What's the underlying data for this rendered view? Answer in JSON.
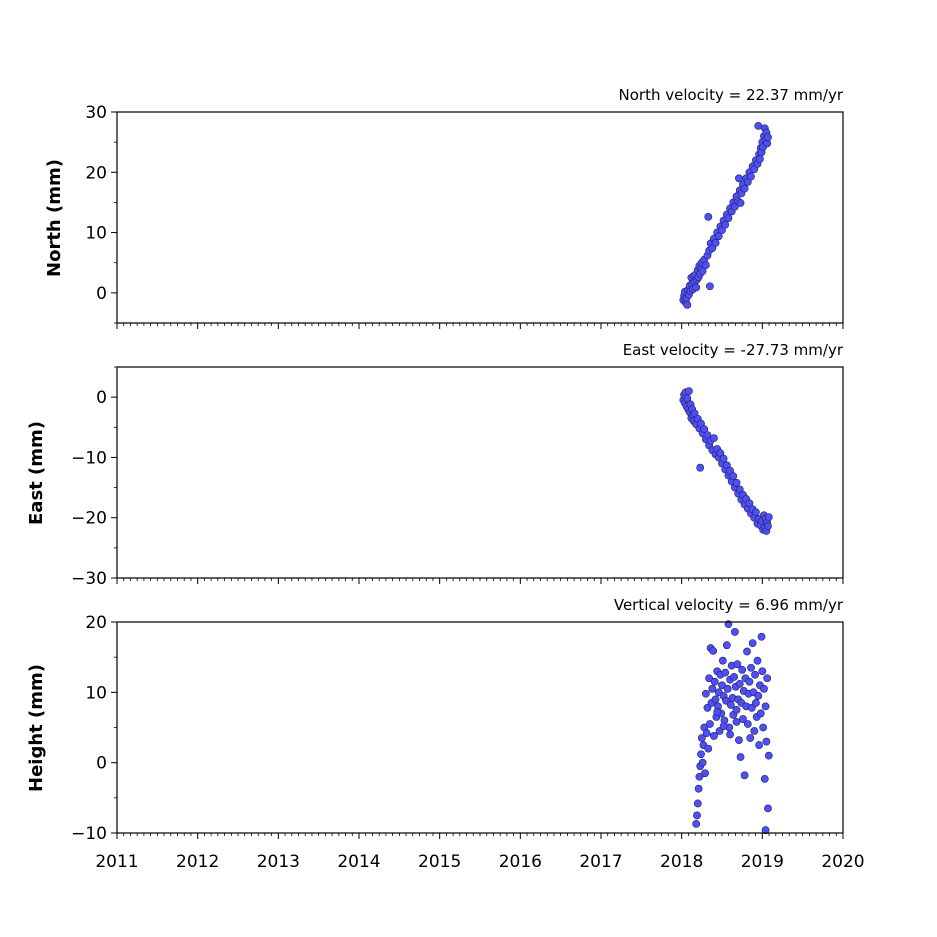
{
  "colors": {
    "marker_fill": "#4f4ff7",
    "marker_edge": "#22225a",
    "axes": "#000000"
  },
  "chart_data": [
    {
      "type": "scatter",
      "title": "North velocity = 22.37 mm/yr",
      "xlabel": "",
      "ylabel": "North (mm)",
      "xlim": [
        2011,
        2020
      ],
      "ylim": [
        -5,
        30
      ],
      "x_ticks": [
        "2011",
        "2012",
        "2013",
        "2014",
        "2015",
        "2016",
        "2017",
        "2018",
        "2019",
        "2020"
      ],
      "x_tick_labels_visible": false,
      "y_ticks": [
        0,
        10,
        20,
        30
      ],
      "grid": false,
      "points": [
        [
          2018.02,
          -1.2
        ],
        [
          2018.03,
          -0.5
        ],
        [
          2018.04,
          0.2
        ],
        [
          2018.05,
          -1.6
        ],
        [
          2018.06,
          -0.9
        ],
        [
          2018.07,
          -2.0
        ],
        [
          2018.08,
          0.5
        ],
        [
          2018.09,
          -0.3
        ],
        [
          2018.1,
          1.2
        ],
        [
          2018.11,
          0.3
        ],
        [
          2018.12,
          2.5
        ],
        [
          2018.13,
          1.5
        ],
        [
          2018.14,
          0.6
        ],
        [
          2018.15,
          2.8
        ],
        [
          2018.16,
          1.8
        ],
        [
          2018.17,
          3.0
        ],
        [
          2018.18,
          0.9
        ],
        [
          2018.19,
          2.2
        ],
        [
          2018.2,
          3.8
        ],
        [
          2018.21,
          2.6
        ],
        [
          2018.22,
          4.5
        ],
        [
          2018.23,
          3.2
        ],
        [
          2018.24,
          4.0
        ],
        [
          2018.25,
          5.0
        ],
        [
          2018.26,
          3.6
        ],
        [
          2018.28,
          5.5
        ],
        [
          2018.3,
          4.6
        ],
        [
          2018.32,
          6.2
        ],
        [
          2018.33,
          12.6
        ],
        [
          2018.34,
          7.0
        ],
        [
          2018.35,
          1.1
        ],
        [
          2018.36,
          8.2
        ],
        [
          2018.38,
          7.4
        ],
        [
          2018.4,
          9.0
        ],
        [
          2018.42,
          8.3
        ],
        [
          2018.44,
          10.0
        ],
        [
          2018.46,
          9.4
        ],
        [
          2018.48,
          11.0
        ],
        [
          2018.5,
          10.4
        ],
        [
          2018.52,
          12.0
        ],
        [
          2018.54,
          11.3
        ],
        [
          2018.56,
          13.0
        ],
        [
          2018.58,
          12.4
        ],
        [
          2018.6,
          14.0
        ],
        [
          2018.62,
          13.5
        ],
        [
          2018.64,
          15.0
        ],
        [
          2018.66,
          14.3
        ],
        [
          2018.68,
          16.0
        ],
        [
          2018.7,
          15.2
        ],
        [
          2018.71,
          19.0
        ],
        [
          2018.72,
          17.0
        ],
        [
          2018.73,
          14.9
        ],
        [
          2018.74,
          16.5
        ],
        [
          2018.76,
          18.0
        ],
        [
          2018.78,
          17.3
        ],
        [
          2018.8,
          19.0
        ],
        [
          2018.82,
          18.4
        ],
        [
          2018.84,
          20.0
        ],
        [
          2018.86,
          19.3
        ],
        [
          2018.88,
          21.0
        ],
        [
          2018.9,
          20.5
        ],
        [
          2018.92,
          22.0
        ],
        [
          2018.94,
          21.4
        ],
        [
          2018.95,
          27.7
        ],
        [
          2018.96,
          23.0
        ],
        [
          2018.97,
          22.2
        ],
        [
          2018.98,
          24.0
        ],
        [
          2018.99,
          23.3
        ],
        [
          2019.0,
          25.0
        ],
        [
          2019.01,
          24.2
        ],
        [
          2019.02,
          26.0
        ],
        [
          2019.03,
          27.3
        ],
        [
          2019.04,
          25.4
        ],
        [
          2019.05,
          26.6
        ],
        [
          2019.06,
          24.8
        ],
        [
          2019.07,
          25.8
        ]
      ]
    },
    {
      "type": "scatter",
      "title": "East velocity = -27.73 mm/yr",
      "xlabel": "",
      "ylabel": "East (mm)",
      "xlim": [
        2011,
        2020
      ],
      "ylim": [
        -30,
        5
      ],
      "x_ticks": [
        "2011",
        "2012",
        "2013",
        "2014",
        "2015",
        "2016",
        "2017",
        "2018",
        "2019",
        "2020"
      ],
      "x_tick_labels_visible": false,
      "y_ticks": [
        -30,
        -20,
        -10,
        0
      ],
      "y_tick_labels": [
        "−30",
        "−20",
        "−10",
        "0"
      ],
      "grid": false,
      "points": [
        [
          2018.02,
          -0.5
        ],
        [
          2018.03,
          0.4
        ],
        [
          2018.04,
          -1.0
        ],
        [
          2018.05,
          0.8
        ],
        [
          2018.06,
          -1.5
        ],
        [
          2018.07,
          -0.2
        ],
        [
          2018.08,
          -2.0
        ],
        [
          2018.09,
          1.0
        ],
        [
          2018.1,
          -2.5
        ],
        [
          2018.11,
          -1.2
        ],
        [
          2018.12,
          -3.5
        ],
        [
          2018.13,
          -2.0
        ],
        [
          2018.14,
          -3.0
        ],
        [
          2018.15,
          -4.0
        ],
        [
          2018.16,
          -2.7
        ],
        [
          2018.18,
          -4.5
        ],
        [
          2018.2,
          -3.6
        ],
        [
          2018.22,
          -5.2
        ],
        [
          2018.23,
          -11.7
        ],
        [
          2018.24,
          -4.4
        ],
        [
          2018.26,
          -6.0
        ],
        [
          2018.28,
          -5.3
        ],
        [
          2018.3,
          -7.0
        ],
        [
          2018.32,
          -6.3
        ],
        [
          2018.34,
          -8.0
        ],
        [
          2018.36,
          -7.2
        ],
        [
          2018.38,
          -8.8
        ],
        [
          2018.4,
          -6.8
        ],
        [
          2018.42,
          -9.5
        ],
        [
          2018.44,
          -8.6
        ],
        [
          2018.46,
          -10.0
        ],
        [
          2018.48,
          -9.3
        ],
        [
          2018.5,
          -11.0
        ],
        [
          2018.52,
          -10.2
        ],
        [
          2018.54,
          -12.0
        ],
        [
          2018.56,
          -11.3
        ],
        [
          2018.58,
          -13.0
        ],
        [
          2018.6,
          -12.2
        ],
        [
          2018.62,
          -14.0
        ],
        [
          2018.64,
          -13.1
        ],
        [
          2018.66,
          -15.0
        ],
        [
          2018.68,
          -14.2
        ],
        [
          2018.7,
          -16.0
        ],
        [
          2018.72,
          -15.3
        ],
        [
          2018.74,
          -17.0
        ],
        [
          2018.76,
          -16.2
        ],
        [
          2018.78,
          -17.8
        ],
        [
          2018.8,
          -16.9
        ],
        [
          2018.82,
          -18.5
        ],
        [
          2018.84,
          -17.6
        ],
        [
          2018.86,
          -19.3
        ],
        [
          2018.88,
          -18.6
        ],
        [
          2018.9,
          -20.0
        ],
        [
          2018.92,
          -19.1
        ],
        [
          2018.94,
          -21.0
        ],
        [
          2018.96,
          -20.2
        ],
        [
          2018.98,
          -21.3
        ],
        [
          2019.0,
          -20.5
        ],
        [
          2019.01,
          -22.0
        ],
        [
          2019.02,
          -19.6
        ],
        [
          2019.03,
          -21.6
        ],
        [
          2019.04,
          -20.2
        ],
        [
          2019.05,
          -22.2
        ],
        [
          2019.06,
          -20.8
        ],
        [
          2019.07,
          -21.4
        ],
        [
          2019.08,
          -19.9
        ]
      ]
    },
    {
      "type": "scatter",
      "title": "Vertical velocity = 6.96 mm/yr",
      "xlabel": "",
      "ylabel": "Height (mm)",
      "xlim": [
        2011,
        2020
      ],
      "ylim": [
        -10,
        20
      ],
      "x_ticks": [
        "2011",
        "2012",
        "2013",
        "2014",
        "2015",
        "2016",
        "2017",
        "2018",
        "2019",
        "2020"
      ],
      "x_tick_labels_visible": true,
      "y_ticks": [
        -10,
        0,
        10,
        20
      ],
      "y_tick_labels": [
        "−10",
        "0",
        "10",
        "20"
      ],
      "grid": false,
      "points": [
        [
          2018.18,
          -8.7
        ],
        [
          2018.19,
          -7.5
        ],
        [
          2018.2,
          -5.8
        ],
        [
          2018.21,
          -3.7
        ],
        [
          2018.22,
          -2.0
        ],
        [
          2018.23,
          -0.5
        ],
        [
          2018.24,
          1.2
        ],
        [
          2018.25,
          3.5
        ],
        [
          2018.26,
          0.0
        ],
        [
          2018.27,
          2.5
        ],
        [
          2018.28,
          5.0
        ],
        [
          2018.29,
          -1.5
        ],
        [
          2018.3,
          9.8
        ],
        [
          2018.31,
          4.2
        ],
        [
          2018.32,
          7.8
        ],
        [
          2018.33,
          2.0
        ],
        [
          2018.34,
          12.0
        ],
        [
          2018.35,
          5.5
        ],
        [
          2018.36,
          16.3
        ],
        [
          2018.37,
          8.5
        ],
        [
          2018.38,
          10.5
        ],
        [
          2018.39,
          15.9
        ],
        [
          2018.4,
          3.8
        ],
        [
          2018.41,
          11.5
        ],
        [
          2018.42,
          9.0
        ],
        [
          2018.43,
          6.5
        ],
        [
          2018.44,
          13.0
        ],
        [
          2018.45,
          8.0
        ],
        [
          2018.46,
          10.0
        ],
        [
          2018.47,
          4.5
        ],
        [
          2018.48,
          12.5
        ],
        [
          2018.49,
          7.0
        ],
        [
          2018.5,
          11.0
        ],
        [
          2018.51,
          14.5
        ],
        [
          2018.52,
          9.5
        ],
        [
          2018.53,
          6.0
        ],
        [
          2018.54,
          12.8
        ],
        [
          2018.55,
          8.8
        ],
        [
          2018.56,
          16.7
        ],
        [
          2018.57,
          10.5
        ],
        [
          2018.58,
          19.7
        ],
        [
          2018.59,
          5.0
        ],
        [
          2018.6,
          11.8
        ],
        [
          2018.61,
          8.2
        ],
        [
          2018.62,
          13.8
        ],
        [
          2018.63,
          9.2
        ],
        [
          2018.64,
          6.8
        ],
        [
          2018.65,
          12.2
        ],
        [
          2018.66,
          18.6
        ],
        [
          2018.67,
          10.8
        ],
        [
          2018.68,
          7.5
        ],
        [
          2018.69,
          14.0
        ],
        [
          2018.7,
          9.0
        ],
        [
          2018.71,
          3.2
        ],
        [
          2018.72,
          11.2
        ],
        [
          2018.73,
          0.8
        ],
        [
          2018.74,
          8.5
        ],
        [
          2018.75,
          13.2
        ],
        [
          2018.76,
          6.2
        ],
        [
          2018.77,
          10.2
        ],
        [
          2018.78,
          -1.8
        ],
        [
          2018.79,
          12.0
        ],
        [
          2018.8,
          8.0
        ],
        [
          2018.81,
          15.8
        ],
        [
          2018.82,
          5.5
        ],
        [
          2018.83,
          9.8
        ],
        [
          2018.84,
          11.5
        ],
        [
          2018.85,
          3.5
        ],
        [
          2018.86,
          13.5
        ],
        [
          2018.87,
          7.8
        ],
        [
          2018.88,
          17.0
        ],
        [
          2018.89,
          10.0
        ],
        [
          2018.9,
          4.5
        ],
        [
          2018.91,
          12.5
        ],
        [
          2018.92,
          8.5
        ],
        [
          2018.93,
          6.5
        ],
        [
          2018.94,
          14.5
        ],
        [
          2018.95,
          9.5
        ],
        [
          2018.96,
          2.5
        ],
        [
          2018.97,
          11.0
        ],
        [
          2018.98,
          7.0
        ],
        [
          2018.99,
          17.9
        ],
        [
          2019.0,
          13.0
        ],
        [
          2019.01,
          5.0
        ],
        [
          2019.02,
          10.5
        ],
        [
          2019.03,
          -2.3
        ],
        [
          2019.04,
          8.0
        ],
        [
          2019.05,
          3.0
        ],
        [
          2019.06,
          12.0
        ],
        [
          2019.07,
          -6.5
        ],
        [
          2019.08,
          1.0
        ],
        [
          2019.04,
          -9.6
        ],
        [
          2018.44,
          7.2
        ],
        [
          2018.52,
          5.2
        ],
        [
          2018.6,
          4.0
        ],
        [
          2018.68,
          5.8
        ]
      ]
    }
  ]
}
